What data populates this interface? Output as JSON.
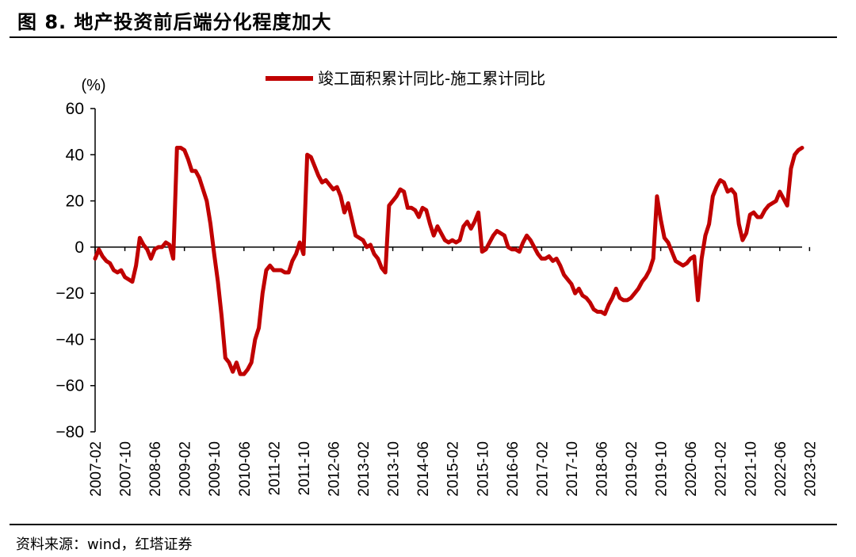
{
  "figure": {
    "title": "图 8. 地产投资前后端分化程度加大",
    "source": "资料来源：wind，红塔证券"
  },
  "chart_data": {
    "type": "line",
    "title": "图 8. 地产投资前后端分化程度加大",
    "ylabel": "(%)",
    "xlabel": "",
    "ylim": [
      -80,
      60
    ],
    "yticks": [
      60,
      40,
      20,
      0,
      -20,
      -40,
      -60,
      -80
    ],
    "ytick_labels": [
      "60",
      "40",
      "20",
      "0",
      "−20",
      "−40",
      "−60",
      "−80"
    ],
    "x_tick_labels": [
      "2007-02",
      "2007-10",
      "2008-06",
      "2009-02",
      "2009-10",
      "2010-06",
      "2011-02",
      "2011-10",
      "2012-06",
      "2013-02",
      "2013-10",
      "2014-06",
      "2015-02",
      "2015-10",
      "2016-06",
      "2017-02",
      "2017-10",
      "2018-06",
      "2019-02",
      "2019-10",
      "2020-06",
      "2021-02",
      "2021-10",
      "2022-06",
      "2023-02"
    ],
    "x_start_month": "2007-02",
    "grid": false,
    "legend_position": "top-center",
    "series": [
      {
        "name": "竣工面积累计同比-施工累计同比",
        "color": "#c00000",
        "values": [
          -5,
          -1,
          -4,
          -6,
          -7,
          -10,
          -11,
          -10,
          -13,
          -14,
          -15,
          -8,
          4,
          1,
          -1,
          -5,
          -1,
          0,
          0,
          2,
          1,
          -5,
          43,
          43,
          42,
          38,
          33,
          33,
          30,
          25,
          20,
          10,
          -3,
          -15,
          -30,
          -48,
          -50,
          -54,
          -50,
          -55,
          -55,
          -53,
          -50,
          -40,
          -35,
          -20,
          -10,
          -8,
          -10,
          -10,
          -10,
          -11,
          -11,
          -6,
          -3,
          2,
          -3,
          40,
          39,
          35,
          31,
          28,
          29,
          27,
          25,
          26,
          22,
          15,
          19,
          12,
          5,
          4,
          3,
          0,
          1,
          -3,
          -5,
          -9,
          -11,
          18,
          20,
          22,
          25,
          24,
          17,
          17,
          16,
          13,
          17,
          16,
          10,
          5,
          9,
          6,
          3,
          2,
          3,
          2,
          3,
          9,
          11,
          8,
          11,
          15,
          -2,
          -1,
          2,
          5,
          7,
          6,
          5,
          0,
          -1,
          -1,
          -2,
          2,
          5,
          3,
          0,
          -3,
          -5,
          -5,
          -4,
          -6,
          -5,
          -8,
          -12,
          -14,
          -16,
          -20,
          -18,
          -21,
          -22,
          -24,
          -27,
          -28,
          -28,
          -29,
          -25,
          -22,
          -18,
          -22,
          -23,
          -23,
          -22,
          -20,
          -18,
          -15,
          -13,
          -10,
          -5,
          22,
          12,
          4,
          2,
          -2,
          -6,
          -7,
          -8,
          -7,
          -5,
          -4,
          -23,
          -5,
          5,
          10,
          22,
          26,
          29,
          28,
          24,
          25,
          23,
          10,
          3,
          6,
          14,
          15,
          13,
          13,
          16,
          18,
          19,
          20,
          24,
          21,
          18,
          34,
          40,
          42,
          43
        ]
      }
    ]
  }
}
